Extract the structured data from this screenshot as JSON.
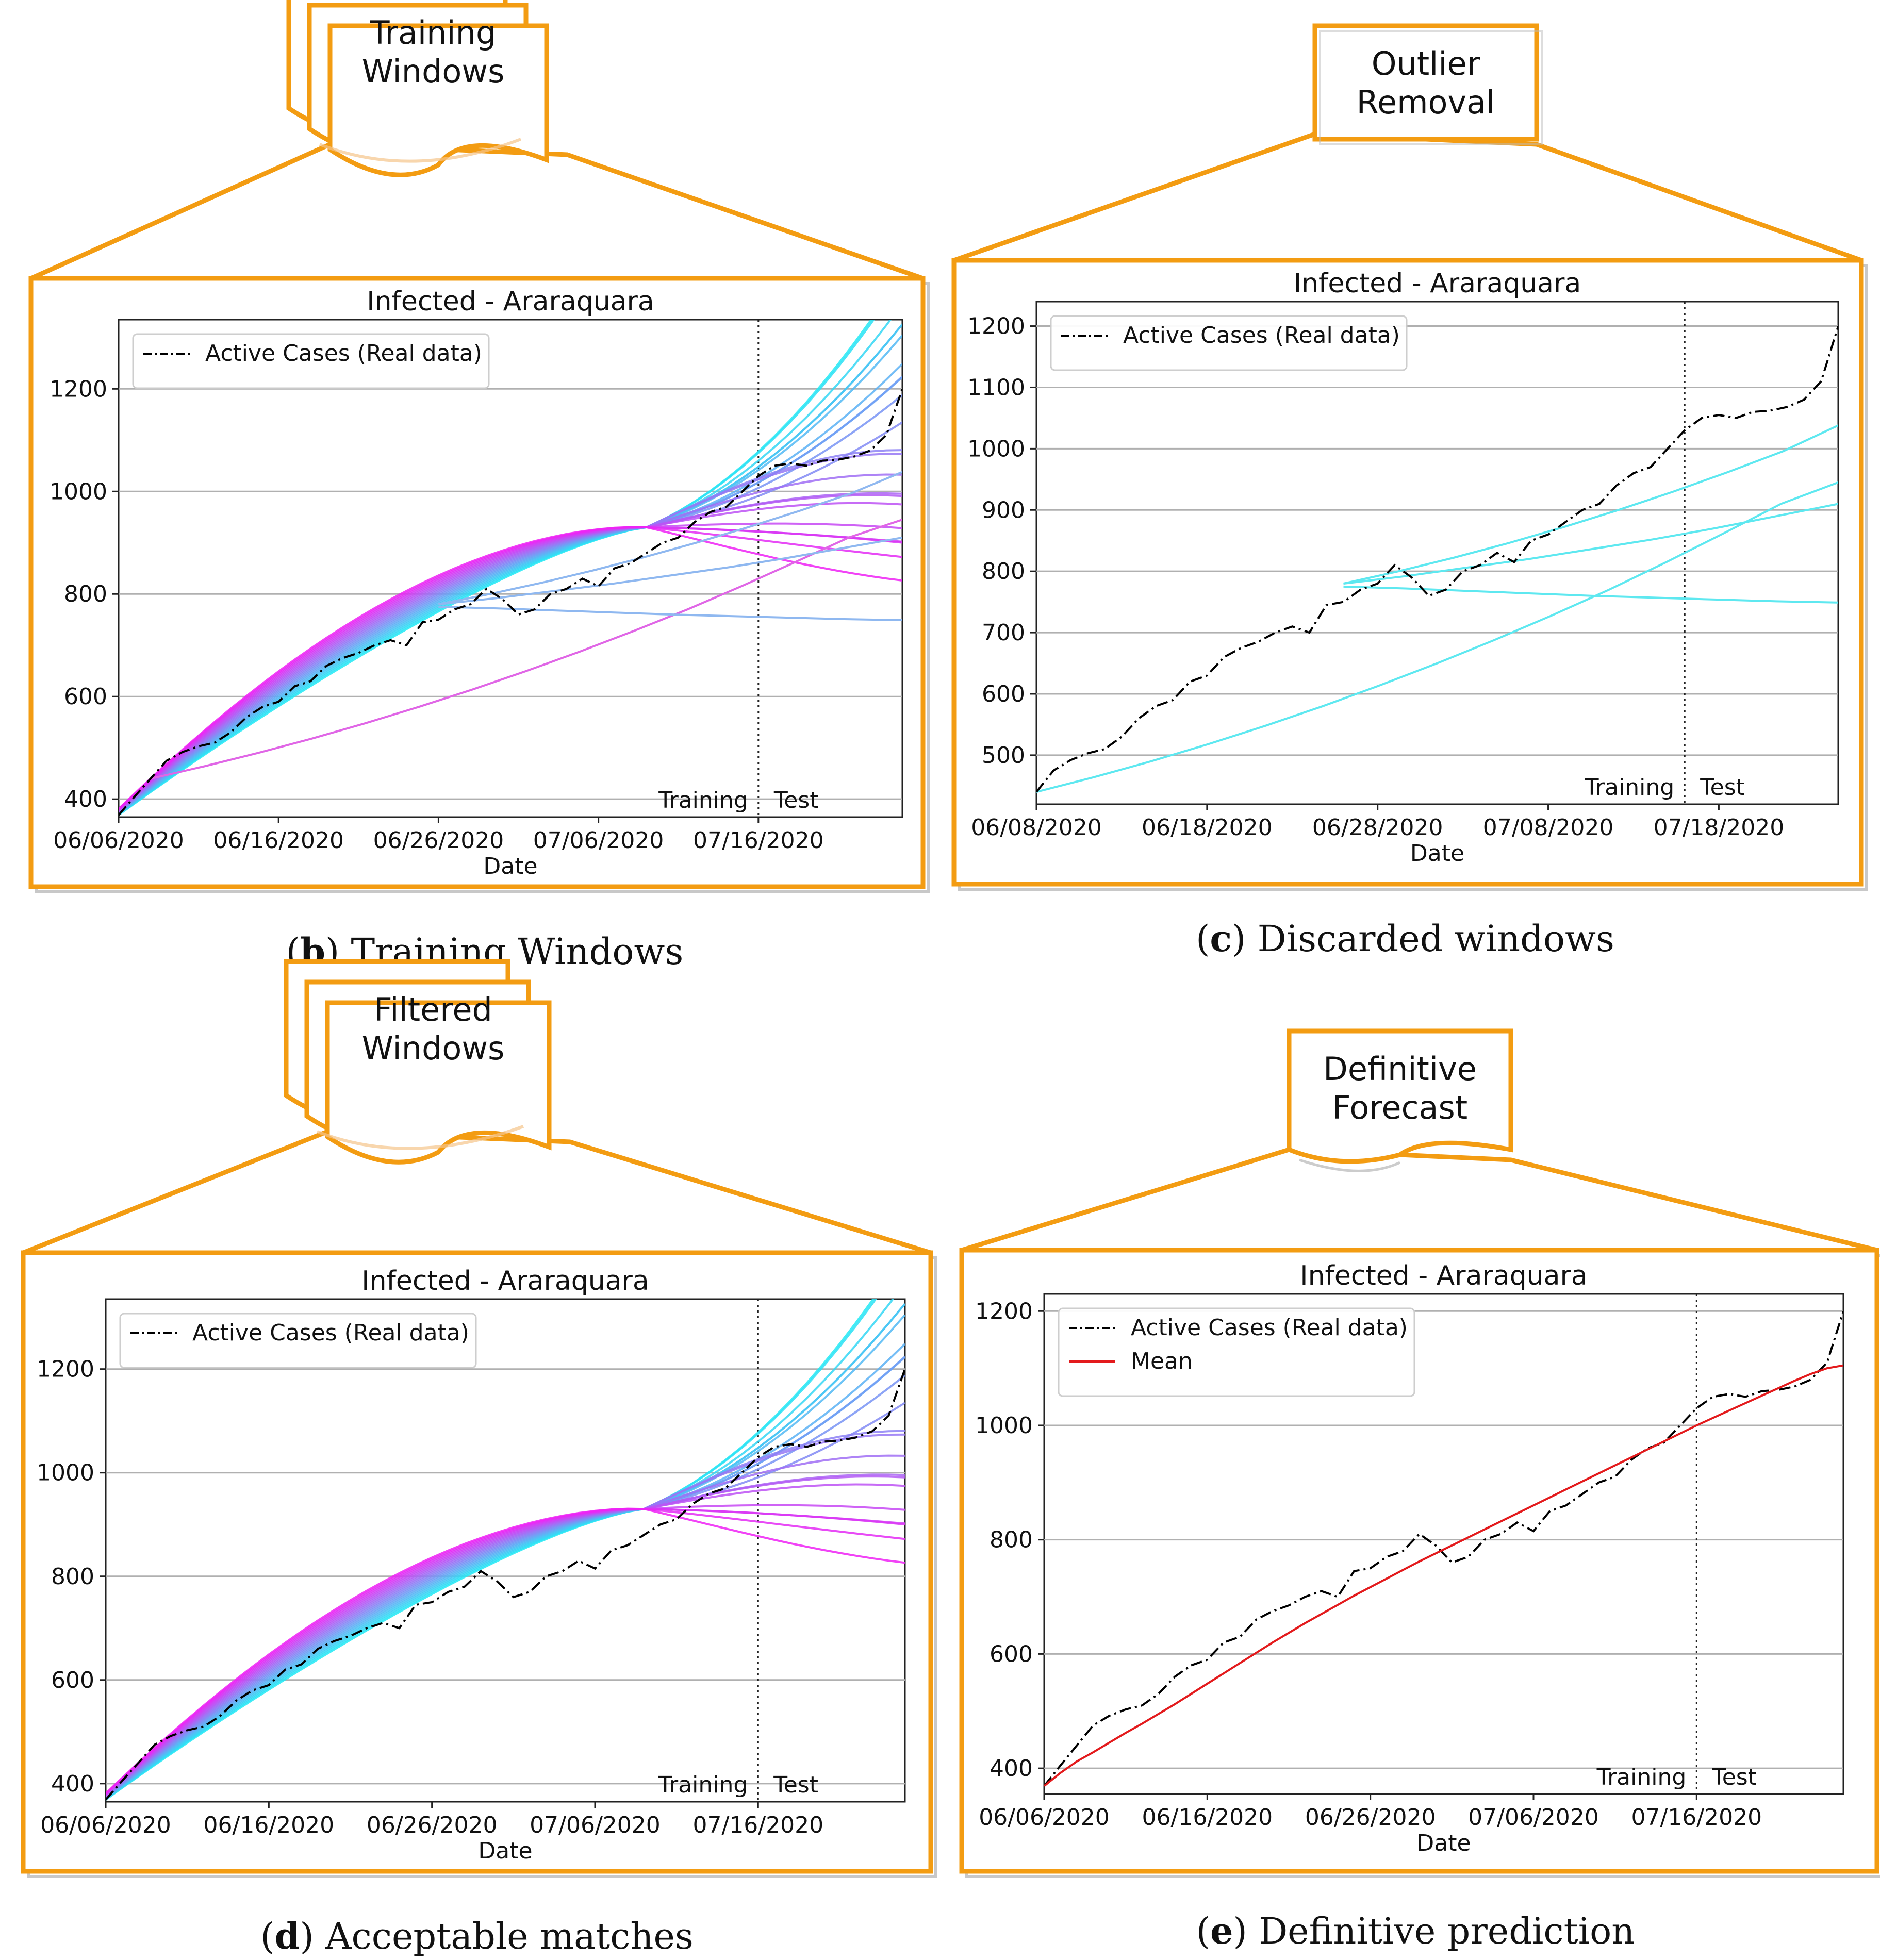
{
  "panels": [
    {
      "id": "b",
      "tab_lines": [
        "Training",
        "Windows"
      ],
      "tab_kind": "doc-stack",
      "caption_letter": "b",
      "caption_text": " Training Windows",
      "chart": {
        "title": "Infected - Araraquara",
        "xlabel": "Date",
        "x_ticks": [
          "06/06/2020",
          "06/16/2020",
          "06/26/2020",
          "07/06/2020",
          "07/16/2020"
        ],
        "y_ticks": [
          400,
          600,
          800,
          1000,
          1200
        ],
        "ylim": [
          365,
          1335
        ],
        "days": 49,
        "split_day": 40,
        "split_labels": [
          "Training",
          "Test"
        ],
        "legend": [
          "Active Cases (Real data)"
        ]
      }
    },
    {
      "id": "c",
      "tab_lines": [
        "Outlier",
        "Removal"
      ],
      "tab_kind": "box",
      "caption_letter": "c",
      "caption_text": " Discarded windows",
      "chart": {
        "title": "Infected - Araraquara",
        "xlabel": "Date",
        "x_ticks": [
          "06/08/2020",
          "06/18/2020",
          "06/28/2020",
          "07/08/2020",
          "07/18/2020"
        ],
        "y_ticks": [
          500,
          600,
          700,
          800,
          900,
          1000,
          1100,
          1200
        ],
        "ylim": [
          420,
          1240
        ],
        "days": 47,
        "split_day": 38,
        "split_labels": [
          "Training",
          "Test"
        ],
        "legend": [
          "Active Cases (Real data)"
        ]
      }
    },
    {
      "id": "d",
      "tab_lines": [
        "Filtered",
        "Windows"
      ],
      "tab_kind": "doc-stack",
      "caption_letter": "d",
      "caption_text": " Acceptable matches",
      "chart": {
        "title": "Infected - Araraquara",
        "xlabel": "Date",
        "x_ticks": [
          "06/06/2020",
          "06/16/2020",
          "06/26/2020",
          "07/06/2020",
          "07/16/2020"
        ],
        "y_ticks": [
          400,
          600,
          800,
          1000,
          1200
        ],
        "ylim": [
          365,
          1335
        ],
        "days": 49,
        "split_day": 40,
        "split_labels": [
          "Training",
          "Test"
        ],
        "legend": [
          "Active Cases (Real data)"
        ]
      }
    },
    {
      "id": "e",
      "tab_lines": [
        "Definitive",
        "Forecast"
      ],
      "tab_kind": "doc",
      "caption_letter": "e",
      "caption_text": " Definitive prediction",
      "chart": {
        "title": "Infected - Araraquara",
        "xlabel": "Date",
        "x_ticks": [
          "06/06/2020",
          "06/16/2020",
          "06/26/2020",
          "07/06/2020",
          "07/16/2020"
        ],
        "y_ticks": [
          400,
          600,
          800,
          1000,
          1200
        ],
        "ylim": [
          355,
          1230
        ],
        "days": 49,
        "split_day": 40,
        "split_labels": [
          "Training",
          "Test"
        ],
        "legend": [
          "Active Cases (Real data)",
          "Mean"
        ]
      }
    }
  ],
  "colors": {
    "frame": "#f39c12",
    "real": "#000000",
    "mean": "#e31a1c",
    "grid": "#b0b0b0",
    "cool_start": "#22eaf5",
    "cool_end": "#ee22f5"
  },
  "chart_data": {
    "type": "line",
    "title": "Infected - Araraquara",
    "xlabel": "Date",
    "series": [
      {
        "name": "Active Cases (Real data)",
        "start_date": "06/06/2020",
        "values": [
          369,
          405,
          440,
          475,
          492,
          503,
          510,
          530,
          560,
          580,
          590,
          620,
          630,
          660,
          675,
          685,
          700,
          710,
          700,
          745,
          750,
          770,
          780,
          810,
          790,
          760,
          770,
          800,
          810,
          830,
          815,
          850,
          860,
          880,
          900,
          910,
          940,
          960,
          970,
          1000,
          1030,
          1050,
          1055,
          1050,
          1060,
          1062,
          1068,
          1080,
          1110,
          1200
        ]
      },
      {
        "name": "Mean",
        "start_date": "06/06/2020",
        "values": [
          369,
          392,
          412,
          428,
          445,
          462,
          478,
          495,
          512,
          530,
          548,
          566,
          584,
          602,
          620,
          637,
          654,
          670,
          686,
          702,
          717,
          732,
          747,
          762,
          776,
          790,
          804,
          818,
          832,
          846,
          860,
          874,
          888,
          902,
          916,
          930,
          944,
          958,
          972,
          986,
          1000,
          1013,
          1026,
          1039,
          1052,
          1065,
          1078,
          1090,
          1100,
          1105
        ]
      }
    ],
    "discarded_windows": [
      {
        "name": "window-1",
        "start_date": "06/08/2020",
        "values": [
          440,
          464,
          490,
          518,
          548,
          580,
          614,
          650,
          688,
          728,
          770,
          815,
          862,
          910,
          945
        ]
      },
      {
        "name": "window-2",
        "start_date": "06/26/2020",
        "values": [
          775,
          772,
          768,
          764,
          760,
          757,
          754,
          751,
          749
        ]
      },
      {
        "name": "window-3",
        "start_date": "06/26/2020",
        "values": [
          780,
          800,
          822,
          846,
          872,
          900,
          930,
          962,
          996,
          1038
        ]
      },
      {
        "name": "window-4",
        "start_date": "06/26/2020",
        "values": [
          780,
          792,
          806,
          820,
          836,
          852,
          870,
          890,
          910
        ]
      }
    ],
    "training_windows": {
      "count": 22,
      "start_date": "06/06/2020",
      "end_value_range": [
        870,
        1320
      ]
    }
  }
}
